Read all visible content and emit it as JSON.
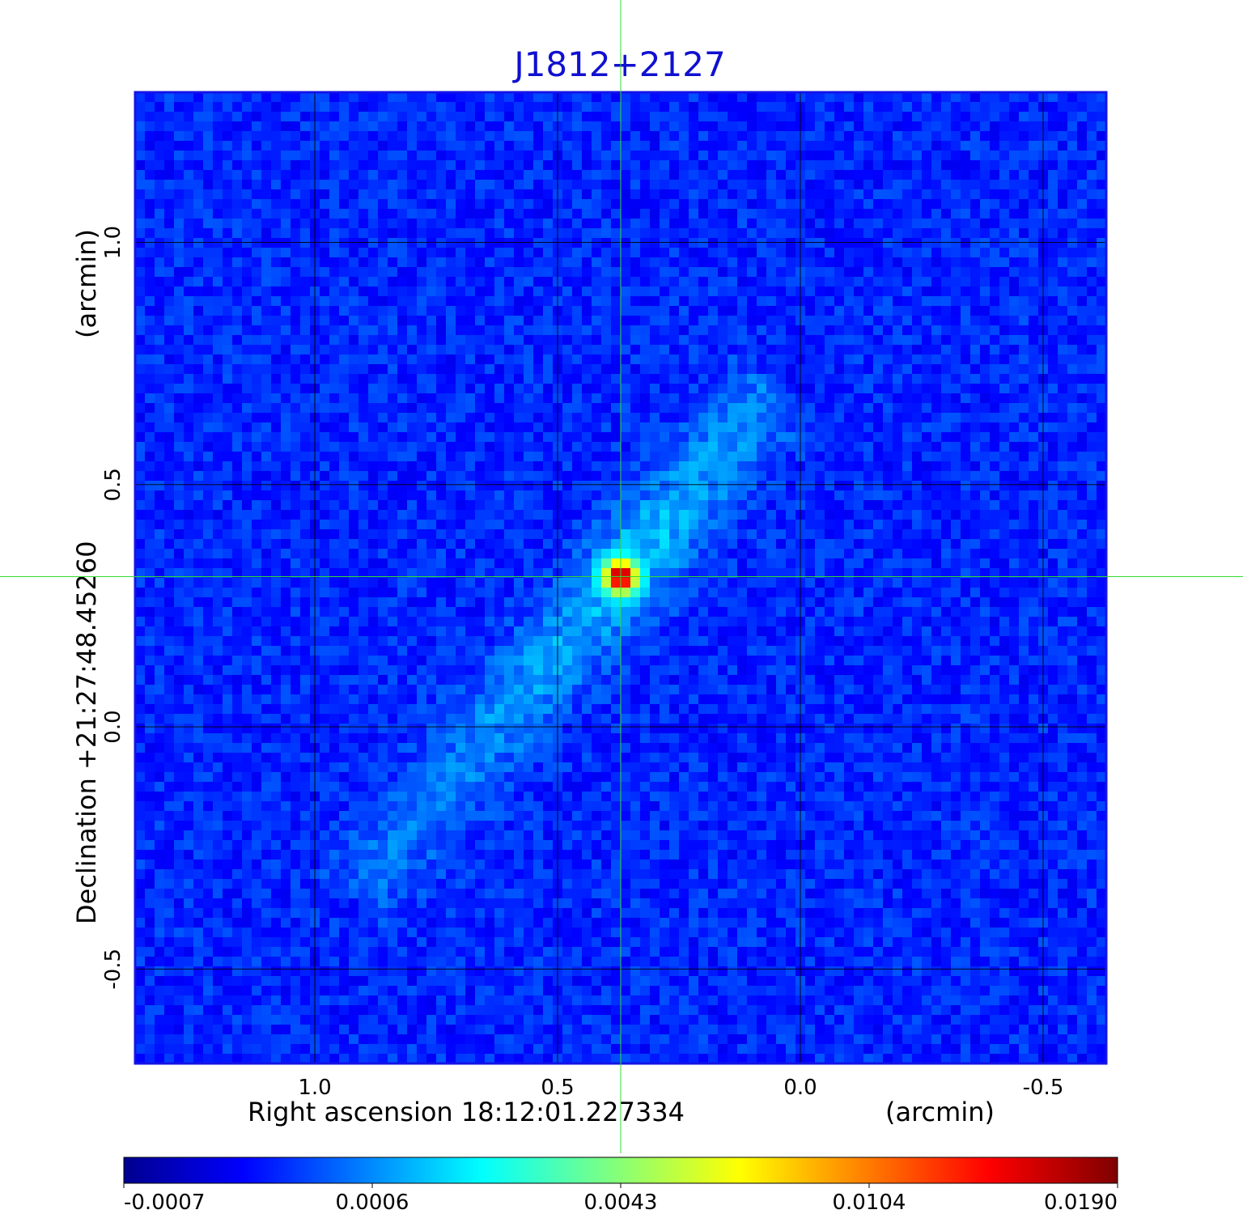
{
  "chart_data": {
    "type": "heatmap",
    "title": "J1812+2127",
    "xlabel": "Right ascension  18:12:01.227334",
    "xunit": "(arcmin)",
    "ylabel": "Declination  +21:27:48.45260",
    "yunit": "(arcmin)",
    "xlim": [
      1.37,
      -0.63
    ],
    "ylim": [
      -0.695,
      1.31
    ],
    "x_ticks": [
      1.0,
      0.5,
      0.0,
      -0.5
    ],
    "x_tick_labels": [
      "1.0",
      "0.5",
      "0.0",
      "-0.5"
    ],
    "y_ticks": [
      1.0,
      0.5,
      0.0,
      -0.5
    ],
    "y_tick_labels": [
      "1.0",
      "0.5",
      "0.0",
      "-0.5"
    ],
    "grid": true,
    "crosshair": {
      "x": 0.37,
      "y": 0.31
    },
    "source_peak": {
      "x": 0.37,
      "y": 0.31,
      "value": 0.019
    },
    "colorbar": {
      "tick_values": [
        -0.0007,
        0.0006,
        0.0043,
        0.0104,
        0.019
      ],
      "tick_labels": [
        "-0.0007",
        "0.0006",
        "0.0043",
        "0.0104",
        "0.0190"
      ],
      "colormap": "jet"
    },
    "colors": {
      "title": "#1010d0",
      "frame": "#1414e6",
      "grid": "#000000",
      "crosshair": "#33dd33"
    }
  }
}
